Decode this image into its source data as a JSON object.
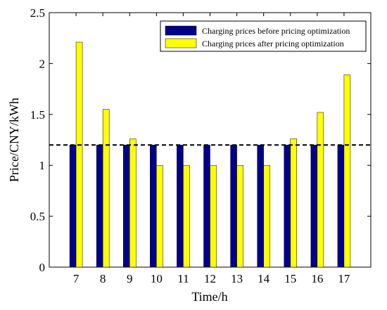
{
  "chart_data": {
    "type": "bar",
    "xlabel": "Time/h",
    "ylabel": "Price/CNY/kWh",
    "ylim": [
      0,
      2.5
    ],
    "yticks": [
      "0",
      "0.5",
      "1",
      "1.5",
      "2",
      "2.5"
    ],
    "categories": [
      "7",
      "8",
      "9",
      "10",
      "11",
      "12",
      "13",
      "14",
      "15",
      "16",
      "17"
    ],
    "series": [
      {
        "name": "Charging prices before pricing optimization",
        "color": "#00008b",
        "values": [
          1.2,
          1.2,
          1.2,
          1.2,
          1.2,
          1.2,
          1.2,
          1.2,
          1.2,
          1.2,
          1.2
        ]
      },
      {
        "name": "Charging prices after pricing optimization",
        "color": "#ffff00",
        "values": [
          2.21,
          1.55,
          1.26,
          1.0,
          1.0,
          1.0,
          1.0,
          1.0,
          1.26,
          1.52,
          1.89
        ]
      }
    ],
    "reference_line": {
      "value": 1.2,
      "style": "dashed",
      "color": "#000000"
    },
    "grid": false,
    "legend_position": "top-right"
  }
}
